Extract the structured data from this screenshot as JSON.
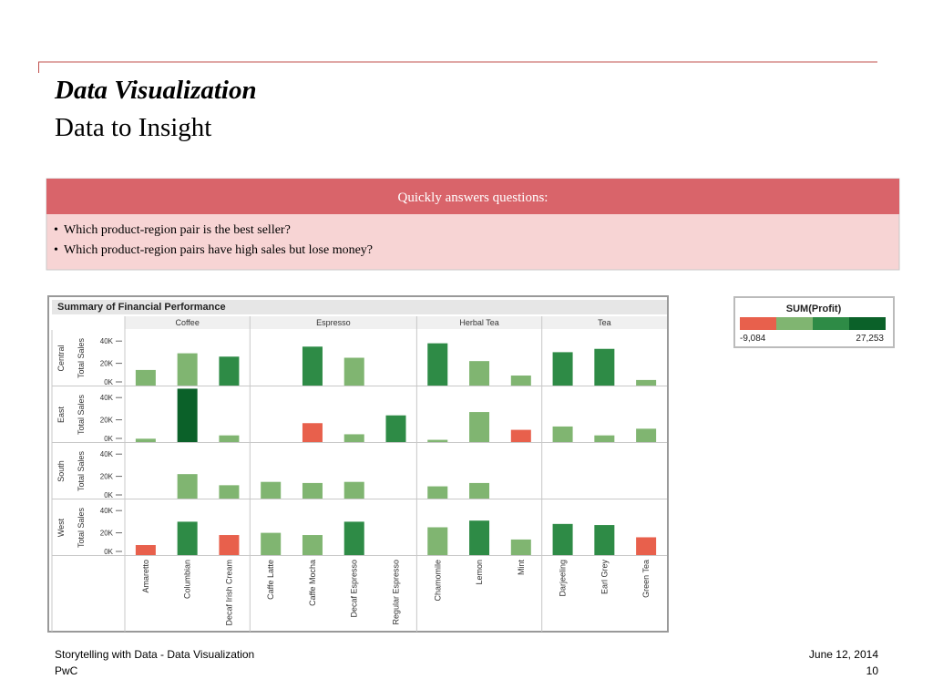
{
  "header": {
    "title": "Data Visualization",
    "subtitle": "Data to Insight"
  },
  "callout": {
    "heading": "Quickly answers questions:",
    "bullets": [
      "Which product-region pair is the best seller?",
      "Which product-region pairs have high sales but lose money?"
    ]
  },
  "chart_data": {
    "type": "bar",
    "title": "Summary of Financial Performance",
    "y_label": "Total Sales",
    "groups": [
      {
        "name": "Coffee",
        "categories": [
          "Amaretto",
          "Columbian",
          "Decaf Irish Cream"
        ]
      },
      {
        "name": "Espresso",
        "categories": [
          "Caffe Latte",
          "Caffe Mocha",
          "Decaf Espresso",
          "Regular Espresso"
        ]
      },
      {
        "name": "Herbal Tea",
        "categories": [
          "Chamomile",
          "Lemon",
          "Mint"
        ]
      },
      {
        "name": "Tea",
        "categories": [
          "Darjeeling",
          "Earl Grey",
          "Green Tea"
        ]
      }
    ],
    "series": [
      {
        "name": "Central",
        "values": [
          14000,
          29000,
          26000,
          null,
          35000,
          25000,
          null,
          38000,
          22000,
          9000,
          30000,
          33000,
          5000
        ],
        "colors": [
          "#80b571",
          "#80b571",
          "#2e8b46",
          null,
          "#2e8b46",
          "#80b571",
          null,
          "#2e8b46",
          "#80b571",
          "#80b571",
          "#2e8b46",
          "#2e8b46",
          "#80b571"
        ]
      },
      {
        "name": "East",
        "values": [
          3000,
          48000,
          6000,
          null,
          17000,
          7000,
          24000,
          2000,
          27000,
          11000,
          14000,
          6000,
          12000
        ],
        "colors": [
          "#80b571",
          "#0b6129",
          "#80b571",
          null,
          "#e8604c",
          "#80b571",
          "#2e8b46",
          "#80b571",
          "#80b571",
          "#e8604c",
          "#80b571",
          "#80b571",
          "#80b571"
        ]
      },
      {
        "name": "South",
        "values": [
          null,
          22000,
          12000,
          15000,
          14000,
          15000,
          null,
          11000,
          14000,
          null,
          null,
          null,
          null
        ],
        "colors": [
          null,
          "#80b571",
          "#80b571",
          "#80b571",
          "#80b571",
          "#80b571",
          null,
          "#80b571",
          "#80b571",
          null,
          null,
          null,
          null
        ]
      },
      {
        "name": "West",
        "values": [
          9000,
          30000,
          18000,
          20000,
          18000,
          30000,
          null,
          25000,
          31000,
          14000,
          28000,
          27000,
          16000
        ],
        "colors": [
          "#e8604c",
          "#2e8b46",
          "#e8604c",
          "#80b571",
          "#80b571",
          "#2e8b46",
          null,
          "#80b571",
          "#2e8b46",
          "#80b571",
          "#2e8b46",
          "#2e8b46",
          "#e8604c"
        ]
      }
    ],
    "ylim": [
      0,
      50000
    ],
    "yticks": [
      {
        "value": 0,
        "label": "0K"
      },
      {
        "value": 20000,
        "label": "20K"
      },
      {
        "value": 40000,
        "label": "40K"
      }
    ],
    "legend": {
      "title": "SUM(Profit)",
      "colors": [
        "#e8604c",
        "#80b571",
        "#2e8b46",
        "#0b6129"
      ],
      "range": [
        {
          "value": -9084,
          "label": "-9,084"
        },
        {
          "value": 27253,
          "label": "27,253"
        }
      ]
    }
  },
  "footer": {
    "left": [
      "Storytelling with Data - Data Visualization",
      "PwC"
    ],
    "right": [
      "June 12, 2014",
      "10"
    ]
  }
}
